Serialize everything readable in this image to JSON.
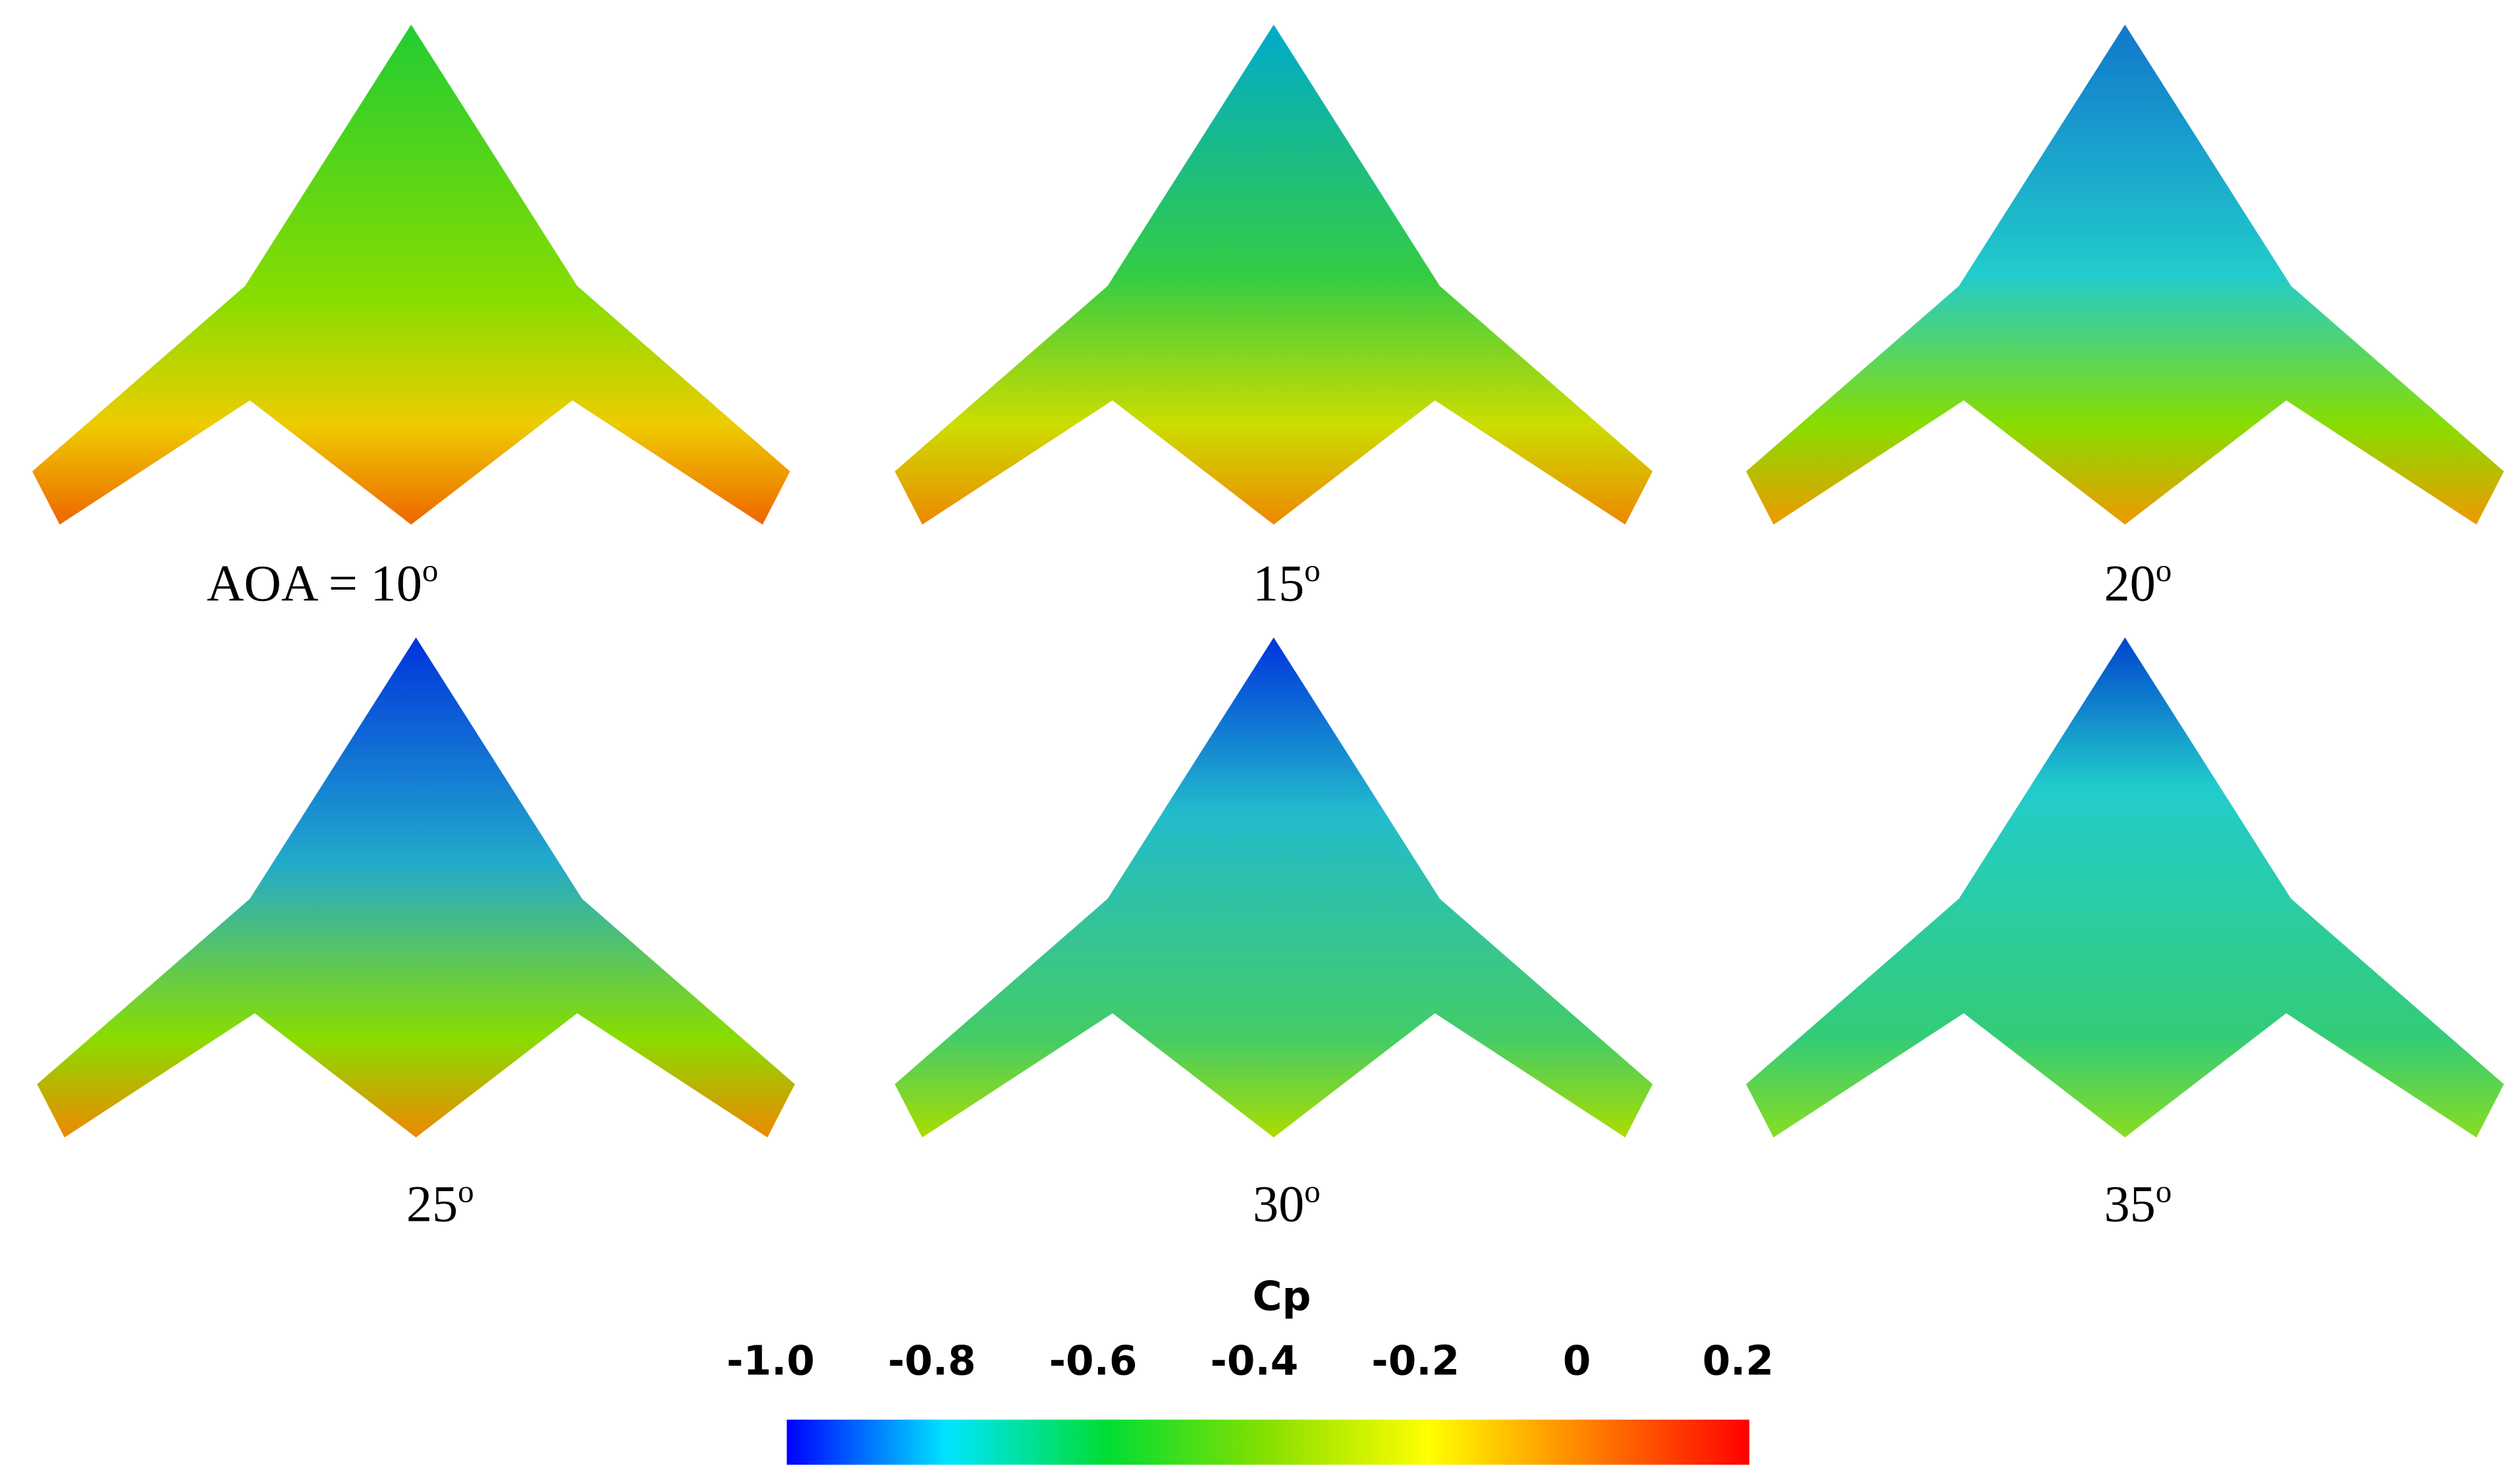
{
  "panels": [
    {
      "label": "AOA = 10",
      "superscript": "o"
    },
    {
      "label": "15",
      "superscript": "o"
    },
    {
      "label": "20",
      "superscript": "o"
    },
    {
      "label": "25",
      "superscript": "o"
    },
    {
      "label": "30",
      "superscript": "o"
    },
    {
      "label": "35",
      "superscript": "o"
    }
  ],
  "colorbar": {
    "title": "Cp",
    "range": [
      -1.0,
      0.2
    ],
    "ticks": [
      {
        "value": -1.0,
        "label": "-1.0"
      },
      -0.8,
      -0.6,
      -0.4,
      -0.2,
      0,
      0.2
    ],
    "colors": [
      "#0000ff",
      "#00e5ff",
      "#00dd33",
      "#88e000",
      "#ffff00",
      "#ff8000",
      "#ff0000"
    ]
  }
}
